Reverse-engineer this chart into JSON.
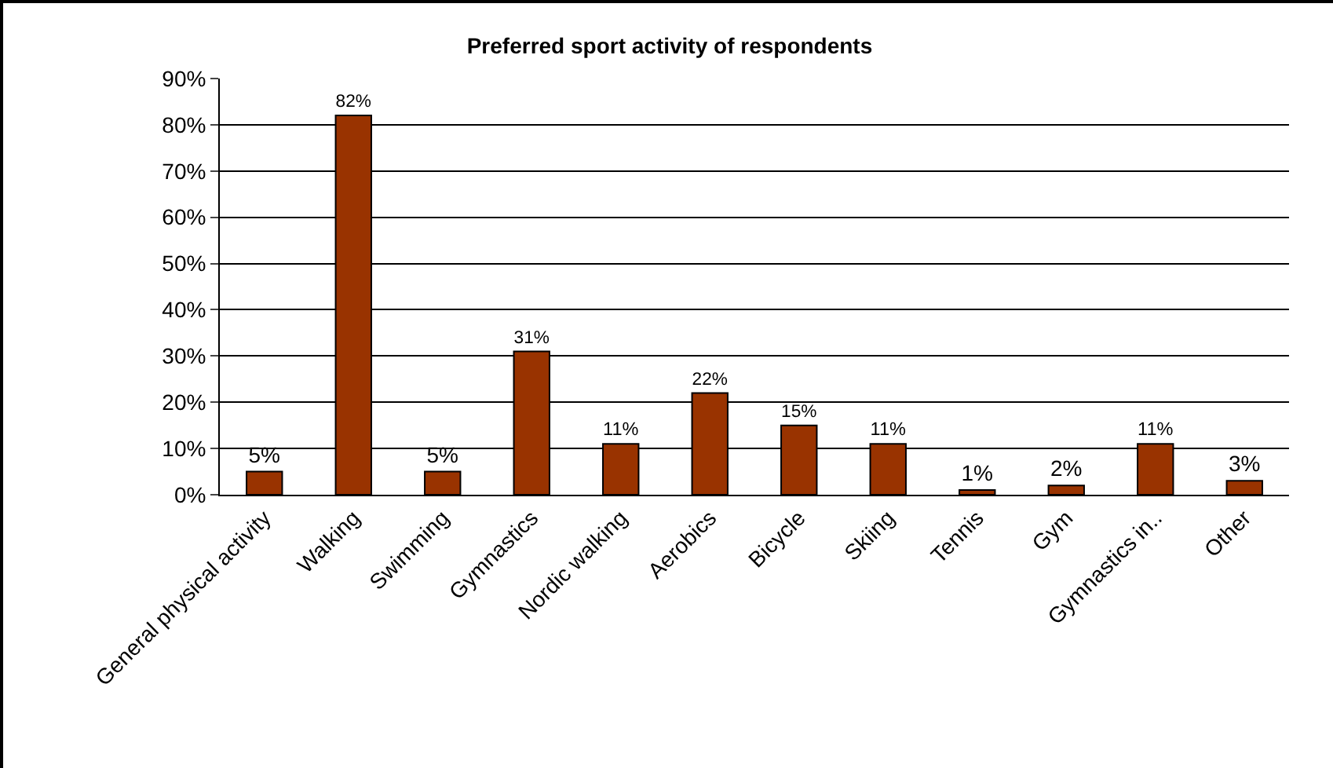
{
  "chart_data": {
    "type": "bar",
    "title": "Preferred sport activity of respondents",
    "categories": [
      "General physical activity",
      "Walking",
      "Swimming",
      "Gymnastics",
      "Nordic walking",
      "Aerobics",
      "Bicycle",
      "Skiing",
      "Tennis",
      "Gym",
      "Gymnastics in..",
      "Other"
    ],
    "values": [
      5,
      82,
      5,
      31,
      11,
      22,
      15,
      11,
      1,
      2,
      11,
      3
    ],
    "color": "#993300",
    "value_labels": [
      "5%",
      "82%",
      "5%",
      "31%",
      "11%",
      "22%",
      "15%",
      "11%",
      "1%",
      "2%",
      "11%",
      "3%"
    ],
    "ylim": [
      0,
      90
    ],
    "yticks": [
      {
        "value": 0,
        "label": "0%"
      },
      {
        "value": 10,
        "label": "10%"
      },
      {
        "value": 20,
        "label": "20%"
      },
      {
        "value": 30,
        "label": "30%"
      },
      {
        "value": 40,
        "label": "40%"
      },
      {
        "value": 50,
        "label": "50%"
      },
      {
        "value": 60,
        "label": "60%"
      },
      {
        "value": 70,
        "label": "70%"
      },
      {
        "value": 80,
        "label": "80%"
      },
      {
        "value": 90,
        "label": "90%"
      }
    ],
    "grid": "y",
    "legend": false
  }
}
